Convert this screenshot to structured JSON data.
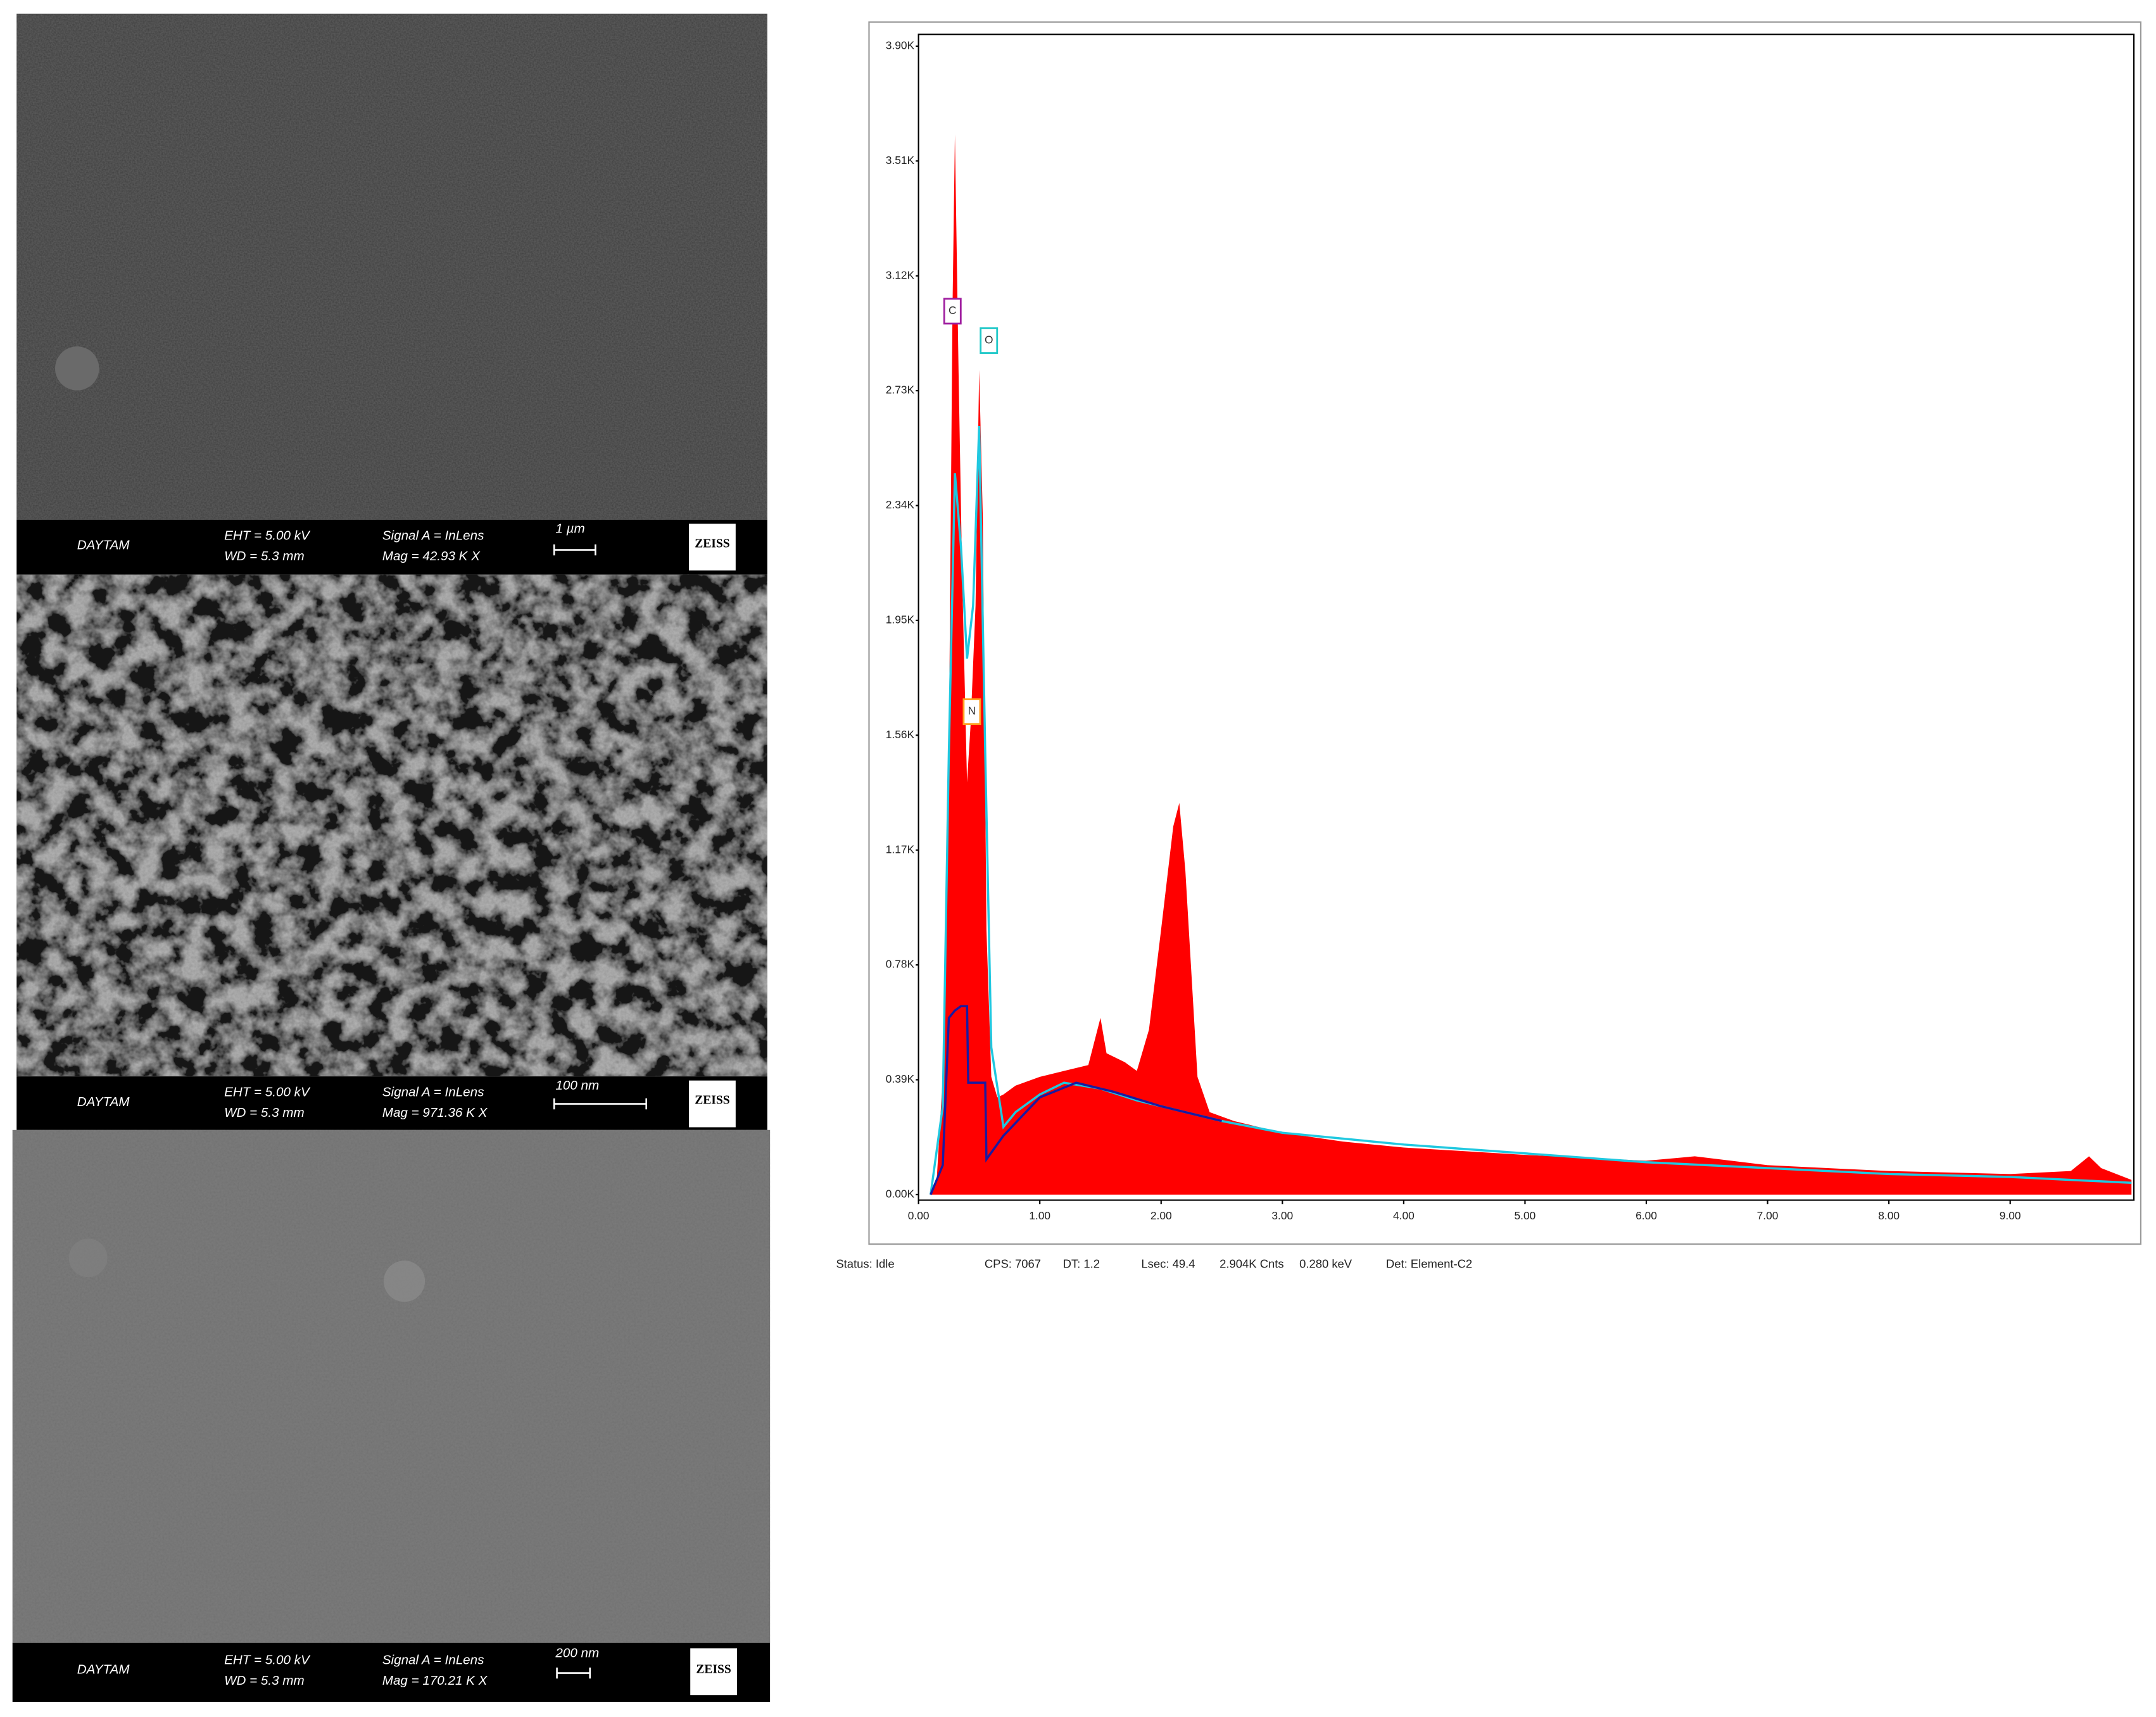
{
  "sem_images": [
    {
      "operator": "DAYTAM",
      "eht": "EHT = 5.00 kV",
      "wd": "WD = 5.3 mm",
      "signal": "Signal A = InLens",
      "mag": "Mag = 42.93 K X",
      "scale_bar": "1 µm",
      "logo": "ZEISS"
    },
    {
      "operator": "DAYTAM",
      "eht": "EHT = 5.00 kV",
      "wd": "WD = 5.3 mm",
      "signal": "Signal A = InLens",
      "mag": "Mag = 971.36 K X",
      "scale_bar": "100 nm",
      "logo": "ZEISS"
    },
    {
      "operator": "DAYTAM",
      "eht": "EHT = 5.00 kV",
      "wd": "WD = 5.3 mm",
      "signal": "Signal A = InLens",
      "mag": "Mag = 170.21 K X",
      "scale_bar": "200 nm",
      "logo": "ZEISS"
    }
  ],
  "chart_data": {
    "type": "line",
    "xlim": [
      0,
      10.02
    ],
    "ylim": [
      0,
      3940
    ],
    "xticks": [
      {
        "value": 0,
        "label": "0.00"
      },
      {
        "value": 1,
        "label": "1.00"
      },
      {
        "value": 2,
        "label": "2.00"
      },
      {
        "value": 3,
        "label": "3.00"
      },
      {
        "value": 4,
        "label": "4.00"
      },
      {
        "value": 5,
        "label": "5.00"
      },
      {
        "value": 6,
        "label": "6.00"
      },
      {
        "value": 7,
        "label": "7.00"
      },
      {
        "value": 8,
        "label": "8.00"
      },
      {
        "value": 9,
        "label": "9.00"
      }
    ],
    "yticks": [
      {
        "value": 0,
        "label": "0.00K"
      },
      {
        "value": 390,
        "label": "0.39K"
      },
      {
        "value": 780,
        "label": "0.78K"
      },
      {
        "value": 1170,
        "label": "1.17K"
      },
      {
        "value": 1560,
        "label": "1.56K"
      },
      {
        "value": 1950,
        "label": "1.95K"
      },
      {
        "value": 2340,
        "label": "2.34K"
      },
      {
        "value": 2730,
        "label": "2.73K"
      },
      {
        "value": 3120,
        "label": "3.12K"
      },
      {
        "value": 3510,
        "label": "3.51K"
      },
      {
        "value": 3900,
        "label": "3.90K"
      }
    ],
    "series": [
      {
        "color": "#ff0000",
        "filled": true,
        "x": [
          0.1,
          0.15,
          0.2,
          0.25,
          0.28,
          0.3,
          0.33,
          0.36,
          0.4,
          0.43,
          0.47,
          0.5,
          0.53,
          0.56,
          0.6,
          0.65,
          0.7,
          0.8,
          1.0,
          1.2,
          1.4,
          1.5,
          1.55,
          1.7,
          1.8,
          1.9,
          2.0,
          2.1,
          2.15,
          2.2,
          2.3,
          2.4,
          2.6,
          3.0,
          3.5,
          4.0,
          5.0,
          6.0,
          6.4,
          7.0,
          8.0,
          9.0,
          9.5,
          9.65,
          9.75,
          10.0
        ],
        "values": [
          0,
          50,
          400,
          1500,
          3000,
          3600,
          2800,
          2100,
          1400,
          1600,
          2000,
          2800,
          2300,
          900,
          400,
          330,
          340,
          370,
          400,
          420,
          440,
          600,
          480,
          450,
          420,
          560,
          900,
          1250,
          1330,
          1100,
          400,
          280,
          250,
          210,
          180,
          160,
          135,
          115,
          130,
          100,
          80,
          70,
          80,
          130,
          90,
          50
        ]
      },
      {
        "color": "#20c8e0",
        "filled": false,
        "x": [
          0.1,
          0.2,
          0.25,
          0.3,
          0.35,
          0.4,
          0.45,
          0.5,
          0.55,
          0.6,
          0.7,
          0.8,
          1.0,
          1.2,
          1.5,
          1.8,
          2.0,
          2.5,
          3.0,
          4.0,
          5.0,
          6.0,
          7.0,
          8.0,
          9.0,
          10.0
        ],
        "values": [
          0,
          300,
          1500,
          2450,
          2200,
          1820,
          2000,
          2610,
          1500,
          500,
          230,
          280,
          340,
          380,
          360,
          320,
          300,
          250,
          210,
          170,
          140,
          110,
          90,
          70,
          60,
          40
        ]
      },
      {
        "color": "#1a1aa0",
        "filled": false,
        "x": [
          0.1,
          0.2,
          0.25,
          0.3,
          0.35,
          0.4,
          0.41,
          0.55,
          0.56,
          0.7,
          1.0,
          1.3,
          1.6,
          2.0,
          2.5
        ],
        "values": [
          0,
          100,
          600,
          625,
          640,
          640,
          380,
          380,
          120,
          200,
          330,
          380,
          350,
          300,
          250
        ]
      }
    ],
    "annotations": [
      {
        "text": "C",
        "x": 0.28,
        "y": 3000,
        "color": "#a020a0"
      },
      {
        "text": "O",
        "x": 0.58,
        "y": 2900,
        "color": "#20c8c8"
      },
      {
        "text": "N",
        "x": 0.44,
        "y": 1640,
        "color": "#ffa020"
      }
    ],
    "status": [
      "Status: Idle",
      "CPS: 7067",
      "DT: 1.2",
      "Lsec: 49.4",
      "2.904K Cnts",
      "0.280 keV",
      "Det: Element-C2"
    ]
  }
}
